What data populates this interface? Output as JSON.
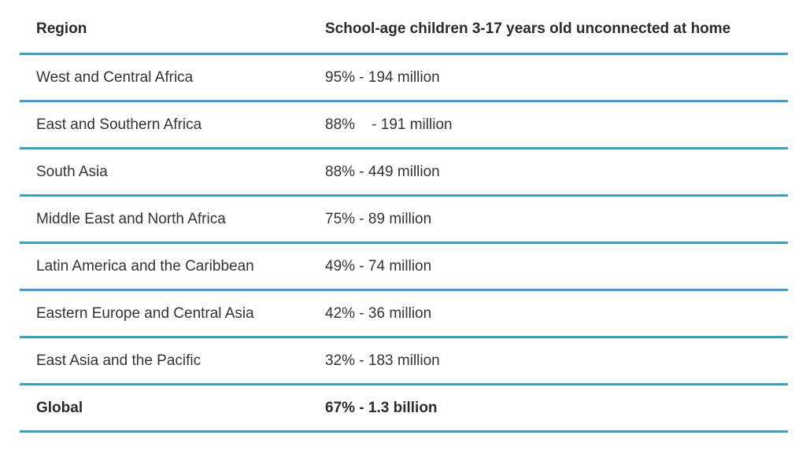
{
  "table": {
    "headers": {
      "region": "Region",
      "value": "School-age children 3-17 years old unconnected at home"
    },
    "rows": [
      {
        "region": "West and Central Africa",
        "value": "95% - 194 million"
      },
      {
        "region": "East and Southern Africa",
        "value": "88%    - 191 million"
      },
      {
        "region": "South Asia",
        "value": "88% - 449 million"
      },
      {
        "region": "Middle East and North Africa",
        "value": "75% - 89 million"
      },
      {
        "region": "Latin America and the Caribbean",
        "value": "49% - 74 million"
      },
      {
        "region": "Eastern Europe and Central Asia",
        "value": "42% - 36 million"
      },
      {
        "region": "East Asia and the Pacific",
        "value": "32% - 183 million"
      }
    ],
    "total": {
      "region": "Global",
      "value": "67% - 1.3 billion"
    }
  },
  "colors": {
    "divider": "#2ea3d6",
    "text": "#333333"
  }
}
